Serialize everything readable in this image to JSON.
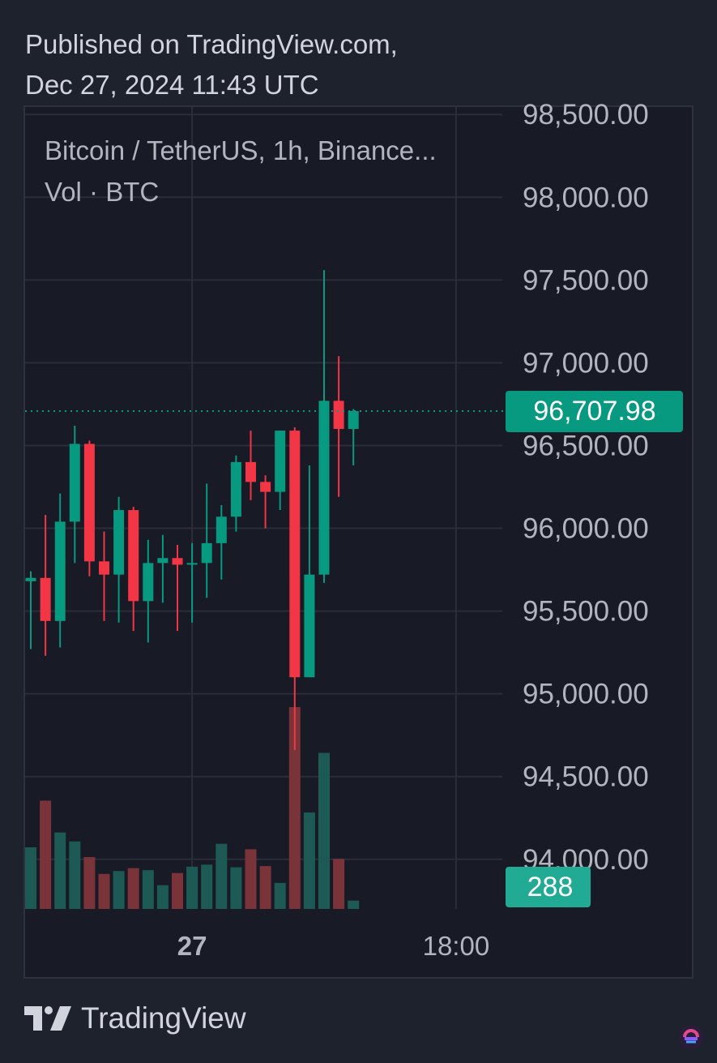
{
  "published": {
    "line1": "Published on TradingView.com,",
    "line2": "Dec 27, 2024 11:43 UTC"
  },
  "legend": {
    "symbol": "Bitcoin / TetherUS, 1h, Binance...",
    "volume": "Vol · BTC"
  },
  "brand": {
    "name": "TradingView",
    "logo_icon": "tradingview-logo-icon",
    "corner_icon": "app-badge-icon"
  },
  "colors": {
    "up": "#089981",
    "down": "#f23645",
    "up_volume": "#1d5a55",
    "down_volume": "#7a3439",
    "background": "#1e222d",
    "pane": "#181a25",
    "grid": "#2a2e39",
    "text": "#d1d4dc",
    "last_price_tag": "#089981",
    "volume_tag": "#22ab94"
  },
  "chart_data": {
    "type": "candlestick",
    "title": "Bitcoin / TetherUS, 1h, Binance...",
    "interval": "1h",
    "ylim": [
      93700,
      98550
    ],
    "y_ticks": [
      {
        "value": 98500,
        "label": "98,500.00"
      },
      {
        "value": 98000,
        "label": "98,000.00"
      },
      {
        "value": 97500,
        "label": "97,500.00"
      },
      {
        "value": 97000,
        "label": "97,000.00"
      },
      {
        "value": 96500,
        "label": "96,500.00"
      },
      {
        "value": 96000,
        "label": "96,000.00"
      },
      {
        "value": 95500,
        "label": "95,500.00"
      },
      {
        "value": 95000,
        "label": "95,000.00"
      },
      {
        "value": 94500,
        "label": "94,500.00"
      },
      {
        "value": 94000,
        "label": "94,000.00"
      }
    ],
    "x_ticks": [
      {
        "bar": 11,
        "label": "27",
        "bold": true
      },
      {
        "bar": 29,
        "label": "18:00",
        "bold": false
      }
    ],
    "last_price": {
      "value": 96707.98,
      "label": "96,707.98"
    },
    "volume_last": {
      "value": 288,
      "label": "288"
    },
    "grid": true,
    "series": [
      {
        "name": "Bitcoin / TetherUS",
        "candles": [
          {
            "o": 95680,
            "h": 95740,
            "l": 95270,
            "c": 95700
          },
          {
            "o": 95700,
            "h": 96080,
            "l": 95230,
            "c": 95440
          },
          {
            "o": 95440,
            "h": 96210,
            "l": 95280,
            "c": 96040
          },
          {
            "o": 96040,
            "h": 96620,
            "l": 95790,
            "c": 96510
          },
          {
            "o": 96510,
            "h": 96530,
            "l": 95710,
            "c": 95800
          },
          {
            "o": 95800,
            "h": 95980,
            "l": 95440,
            "c": 95720
          },
          {
            "o": 95720,
            "h": 96190,
            "l": 95430,
            "c": 96110
          },
          {
            "o": 96110,
            "h": 96130,
            "l": 95380,
            "c": 95560
          },
          {
            "o": 95560,
            "h": 95930,
            "l": 95310,
            "c": 95790
          },
          {
            "o": 95790,
            "h": 95960,
            "l": 95550,
            "c": 95820
          },
          {
            "o": 95820,
            "h": 95900,
            "l": 95380,
            "c": 95780
          },
          {
            "o": 95780,
            "h": 95910,
            "l": 95430,
            "c": 95790
          },
          {
            "o": 95790,
            "h": 96270,
            "l": 95580,
            "c": 95910
          },
          {
            "o": 95910,
            "h": 96140,
            "l": 95690,
            "c": 96070
          },
          {
            "o": 96070,
            "h": 96440,
            "l": 95980,
            "c": 96400
          },
          {
            "o": 96400,
            "h": 96590,
            "l": 96170,
            "c": 96280
          },
          {
            "o": 96280,
            "h": 96320,
            "l": 96000,
            "c": 96220
          },
          {
            "o": 96220,
            "h": 96590,
            "l": 96110,
            "c": 96590
          },
          {
            "o": 96590,
            "h": 96610,
            "l": 94660,
            "c": 95100
          },
          {
            "o": 95100,
            "h": 96380,
            "l": 95100,
            "c": 95720
          },
          {
            "o": 95720,
            "h": 97560,
            "l": 95670,
            "c": 96770
          },
          {
            "o": 96770,
            "h": 97040,
            "l": 96190,
            "c": 96600
          },
          {
            "o": 96600,
            "h": 96720,
            "l": 96380,
            "c": 96707.98
          }
        ]
      },
      {
        "name": "Vol · BTC",
        "values": [
          2130,
          3740,
          2640,
          2330,
          1790,
          1210,
          1310,
          1410,
          1340,
          820,
          1240,
          1460,
          1530,
          2250,
          1440,
          2060,
          1480,
          900,
          6970,
          3330,
          5390,
          1730,
          288
        ]
      }
    ]
  }
}
